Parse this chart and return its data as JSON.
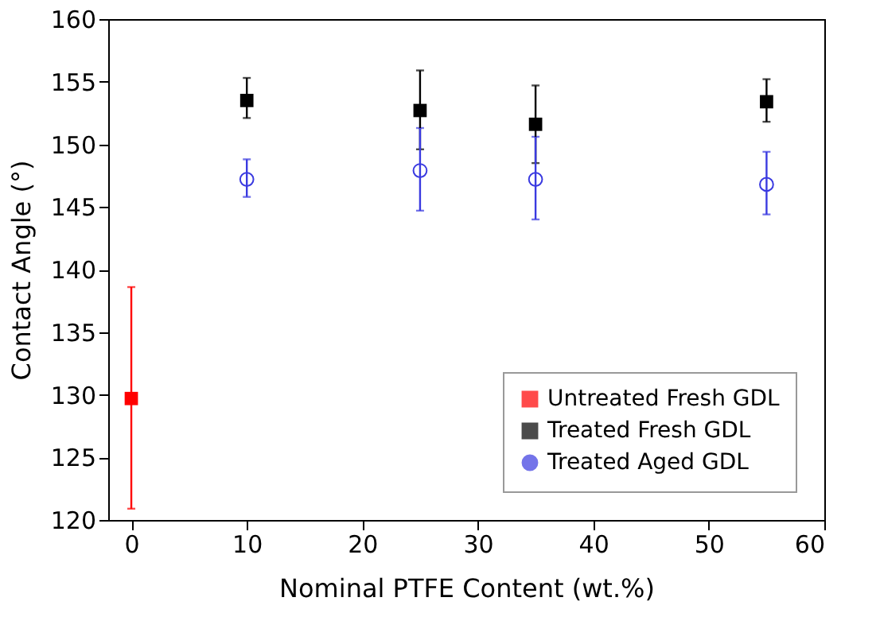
{
  "chart_data": {
    "type": "scatter",
    "xlabel": "Nominal PTFE Content (wt.%)",
    "ylabel": "Contact Angle (°)",
    "xlim": [
      -2,
      60
    ],
    "xticks": [
      0,
      10,
      20,
      30,
      40,
      50,
      60
    ],
    "ylim": [
      120,
      160
    ],
    "yticks": [
      120,
      125,
      130,
      135,
      140,
      145,
      150,
      155,
      160
    ],
    "grid": false,
    "legend": "bottom right",
    "series": [
      {
        "name": "Untreated Fresh GDL",
        "color": "#ff0000",
        "marker": "square",
        "x": [
          0
        ],
        "values": [
          129.7
        ],
        "errors": [
          [
            120.9,
            138.6
          ]
        ]
      },
      {
        "name": "Treated Fresh GDL",
        "color": "#000000",
        "marker": "square",
        "x": [
          10,
          25,
          35,
          55
        ],
        "values": [
          153.5,
          152.7,
          151.6,
          153.4
        ],
        "errors": [
          [
            152.1,
            155.3
          ],
          [
            149.6,
            155.9
          ],
          [
            148.5,
            154.7
          ],
          [
            151.8,
            155.2
          ]
        ]
      },
      {
        "name": "Treated Aged GDL",
        "color": "#3a3ae0",
        "marker": "circle_open",
        "x": [
          10,
          25,
          35,
          55
        ],
        "values": [
          147.2,
          147.9,
          147.2,
          146.8
        ],
        "errors": [
          [
            145.8,
            148.8
          ],
          [
            144.7,
            151.3
          ],
          [
            144.0,
            150.6
          ],
          [
            144.4,
            149.4
          ]
        ]
      }
    ]
  }
}
